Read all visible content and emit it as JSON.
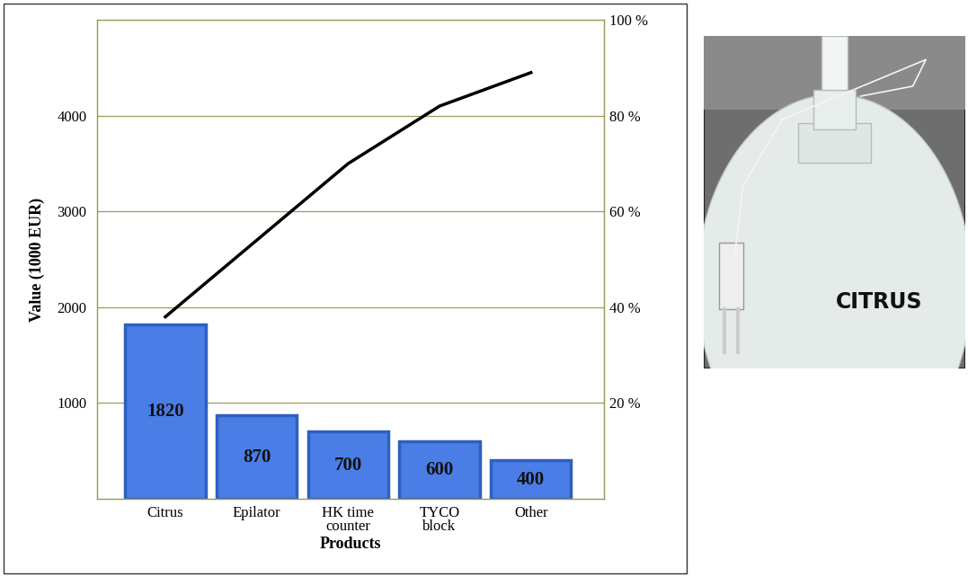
{
  "chart_data": {
    "type": "bar",
    "x_label": "Products",
    "y_label": "Value (1000 EUR)",
    "categories": [
      "Citrus",
      "Epilator",
      "HK time\ncounter",
      "TYCO\nblock",
      "Other"
    ],
    "series": [
      {
        "type": "bar",
        "color": "#4a7ee6",
        "values": [
          1820,
          870,
          700,
          600,
          400
        ]
      },
      {
        "type": "line",
        "axis": "y2",
        "color": "#000000",
        "line_style": "solid",
        "values": [
          38,
          54,
          70,
          82,
          89
        ]
      }
    ],
    "ylim": [
      0,
      5000
    ],
    "yticks": [
      1000,
      2000,
      3000,
      4000
    ],
    "y2lim": [
      0,
      100
    ],
    "y2ticks": [
      {
        "value": 20,
        "label": "20 %"
      },
      {
        "value": 40,
        "label": "40 %"
      },
      {
        "value": 60,
        "label": "60 %"
      },
      {
        "value": 80,
        "label": "80 %"
      },
      {
        "value": 100,
        "label": "100 %"
      }
    ],
    "grid": true,
    "data_labels": true
  },
  "photo": {
    "label": "CITRUS"
  }
}
